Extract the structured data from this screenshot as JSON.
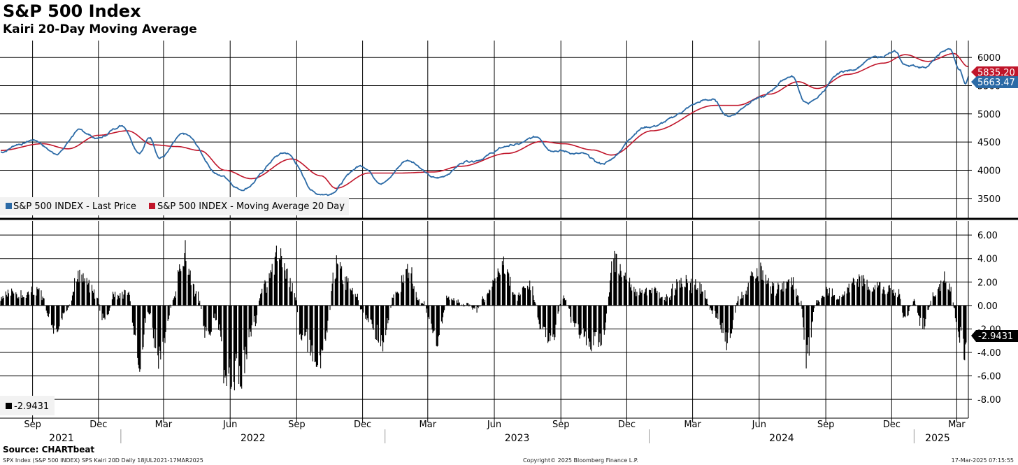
{
  "title": "S&P 500 Index",
  "subtitle": "Kairi 20-Day Moving Average",
  "source": "Source: CHARTbeat",
  "footer": {
    "left": "SPX Index (S&P 500 INDEX) SPS Kairi 20D  Daily 18JUL2021-17MAR2025",
    "center": "Copyright© 2025 Bloomberg Finance L.P.",
    "right": "17-Mar-2025 07:15:55"
  },
  "colors": {
    "price": "#2b6aa6",
    "ma": "#c0152a",
    "kairi": "#000000",
    "grid": "#000000"
  },
  "chart_data": [
    {
      "type": "line",
      "panel": "top",
      "title": "S&P 500 Index",
      "ylim": [
        3150,
        6300
      ],
      "yticks": [
        3500,
        4000,
        4500,
        5000,
        5500,
        6000
      ],
      "legend": [
        "S&P 500 INDEX - Last Price",
        "S&P 500 INDEX - Moving Average 20 Day"
      ],
      "legend_placement": "bottom-left",
      "last_values": {
        "price": "5663.47",
        "ma": "5835.20"
      },
      "series": [
        {
          "name": "S&P 500 INDEX - Last Price",
          "x": [
            "2021-07-18",
            "2021-08-15",
            "2021-09-02",
            "2021-10-04",
            "2021-11-05",
            "2021-11-30",
            "2022-01-03",
            "2022-01-27",
            "2022-02-10",
            "2022-02-24",
            "2022-03-29",
            "2022-05-20",
            "2022-06-16",
            "2022-08-16",
            "2022-09-30",
            "2022-10-12",
            "2022-11-30",
            "2022-12-28",
            "2023-02-02",
            "2023-03-13",
            "2023-04-28",
            "2023-06-30",
            "2023-07-31",
            "2023-08-18",
            "2023-09-29",
            "2023-10-27",
            "2023-12-29",
            "2024-03-28",
            "2024-04-19",
            "2024-05-31",
            "2024-07-16",
            "2024-08-05",
            "2024-09-30",
            "2024-11-11",
            "2024-12-06",
            "2024-12-19",
            "2025-01-13",
            "2025-02-19",
            "2025-03-05",
            "2025-03-13",
            "2025-03-17"
          ],
          "values": [
            4320,
            4470,
            4537,
            4300,
            4700,
            4567,
            4796,
            4326,
            4580,
            4225,
            4631,
            3901,
            3666,
            4305,
            3586,
            3577,
            4080,
            3783,
            4180,
            3855,
            4170,
            4450,
            4589,
            4370,
            4288,
            4117,
            4770,
            5254,
            4967,
            5278,
            5667,
            5186,
            5762,
            6001,
            6090,
            5867,
            5836,
            6144,
            5778,
            5521,
            5663
          ]
        },
        {
          "name": "S&P 500 INDEX - Moving Average 20 Day",
          "x": [
            "2021-07-18",
            "2021-09-15",
            "2021-10-20",
            "2021-12-01",
            "2022-01-10",
            "2022-02-15",
            "2022-03-20",
            "2022-04-20",
            "2022-05-25",
            "2022-06-30",
            "2022-08-25",
            "2022-10-05",
            "2022-10-25",
            "2022-12-10",
            "2023-01-20",
            "2023-03-10",
            "2023-04-15",
            "2023-06-20",
            "2023-08-05",
            "2023-09-05",
            "2023-10-15",
            "2023-11-10",
            "2024-01-05",
            "2024-04-01",
            "2024-05-01",
            "2024-06-15",
            "2024-07-25",
            "2024-08-20",
            "2024-10-01",
            "2024-11-20",
            "2024-12-20",
            "2025-01-20",
            "2025-02-25",
            "2025-03-17"
          ],
          "values": [
            4350,
            4470,
            4380,
            4620,
            4700,
            4450,
            4420,
            4350,
            4000,
            3850,
            4200,
            3900,
            3680,
            3950,
            3950,
            3970,
            4070,
            4300,
            4510,
            4470,
            4360,
            4270,
            4700,
            5150,
            5150,
            5350,
            5570,
            5450,
            5700,
            5900,
            6050,
            5930,
            6070,
            5835
          ]
        }
      ]
    },
    {
      "type": "bar",
      "panel": "bottom",
      "title": "Kairi 20-Day Moving Average",
      "ylim": [
        -9.6,
        7.2
      ],
      "yticks": [
        6.0,
        4.0,
        2.0,
        0.0,
        -2.0,
        -4.0,
        -6.0,
        -8.0
      ],
      "legend": [
        "-2.9431"
      ],
      "legend_placement": "bottom-left",
      "last_value": "-2.9431",
      "anchors": {
        "x": [
          "2021-07-18",
          "2021-08-05",
          "2021-08-20",
          "2021-09-08",
          "2021-10-04",
          "2021-10-15",
          "2021-11-05",
          "2021-11-26",
          "2021-12-10",
          "2021-12-22",
          "2022-01-10",
          "2022-01-27",
          "2022-02-07",
          "2022-02-24",
          "2022-03-14",
          "2022-03-29",
          "2022-04-15",
          "2022-05-01",
          "2022-05-12",
          "2022-05-25",
          "2022-06-16",
          "2022-06-30",
          "2022-07-18",
          "2022-08-08",
          "2022-08-25",
          "2022-09-08",
          "2022-09-30",
          "2022-10-12",
          "2022-10-25",
          "2022-11-15",
          "2022-12-05",
          "2022-12-28",
          "2023-01-15",
          "2023-02-02",
          "2023-02-20",
          "2023-03-13",
          "2023-03-30",
          "2023-04-15",
          "2023-05-05",
          "2023-05-30",
          "2023-06-15",
          "2023-06-30",
          "2023-07-20",
          "2023-08-05",
          "2023-08-18",
          "2023-09-05",
          "2023-09-21",
          "2023-10-04",
          "2023-10-27",
          "2023-11-14",
          "2023-11-24",
          "2023-12-15",
          "2024-01-05",
          "2024-01-20",
          "2024-02-15",
          "2024-03-10",
          "2024-04-01",
          "2024-04-19",
          "2024-05-05",
          "2024-05-31",
          "2024-06-20",
          "2024-07-16",
          "2024-07-28",
          "2024-08-05",
          "2024-08-20",
          "2024-09-06",
          "2024-09-20",
          "2024-10-15",
          "2024-11-05",
          "2024-11-11",
          "2024-11-25",
          "2024-12-10",
          "2024-12-19",
          "2025-01-01",
          "2025-01-13",
          "2025-01-28",
          "2025-02-10",
          "2025-02-19",
          "2025-03-05",
          "2025-03-13",
          "2025-03-17"
        ],
        "values": [
          0.8,
          1.5,
          1.0,
          1.6,
          -2.8,
          -0.6,
          3.3,
          1.4,
          -1.8,
          1.2,
          1.4,
          -6.2,
          -0.5,
          -6.0,
          0.5,
          5.7,
          1.5,
          -3.8,
          -1.2,
          -7.0,
          -7.9,
          -3.0,
          2.0,
          5.6,
          2.5,
          -3.0,
          -6.5,
          -3.0,
          4.4,
          2.0,
          -1.0,
          -3.8,
          1.2,
          3.5,
          0.5,
          -3.8,
          1.0,
          0.4,
          -0.5,
          2.0,
          4.2,
          1.0,
          2.2,
          -2.5,
          -3.7,
          0.8,
          -2.5,
          -3.8,
          -4.0,
          4.8,
          3.8,
          1.5,
          1.8,
          0.7,
          2.5,
          2.0,
          -1.0,
          -3.7,
          1.0,
          3.5,
          1.8,
          2.5,
          0.5,
          -5.8,
          0.5,
          1.5,
          0.8,
          3.3,
          1.5,
          2.3,
          1.8,
          1.5,
          -1.5,
          0.5,
          -2.2,
          1.0,
          2.7,
          2.0,
          -3.5,
          -6.0,
          -2.9431
        ]
      }
    }
  ],
  "x_axis": {
    "months": [
      {
        "label": "Sep",
        "date": "2021-09-01"
      },
      {
        "label": "Dec",
        "date": "2021-12-01"
      },
      {
        "label": "Mar",
        "date": "2022-03-01"
      },
      {
        "label": "Jun",
        "date": "2022-06-01"
      },
      {
        "label": "Sep",
        "date": "2022-09-01"
      },
      {
        "label": "Dec",
        "date": "2022-12-01"
      },
      {
        "label": "Mar",
        "date": "2023-03-01"
      },
      {
        "label": "Jun",
        "date": "2023-06-01"
      },
      {
        "label": "Sep",
        "date": "2023-09-01"
      },
      {
        "label": "Dec",
        "date": "2023-12-01"
      },
      {
        "label": "Mar",
        "date": "2024-03-01"
      },
      {
        "label": "Jun",
        "date": "2024-06-01"
      },
      {
        "label": "Sep",
        "date": "2024-09-01"
      },
      {
        "label": "Dec",
        "date": "2024-12-01"
      },
      {
        "label": "Mar",
        "date": "2025-03-01"
      }
    ],
    "years": [
      "2021",
      "2022",
      "2023",
      "2024",
      "2025"
    ],
    "range": [
      "2021-07-18",
      "2025-03-17"
    ]
  }
}
